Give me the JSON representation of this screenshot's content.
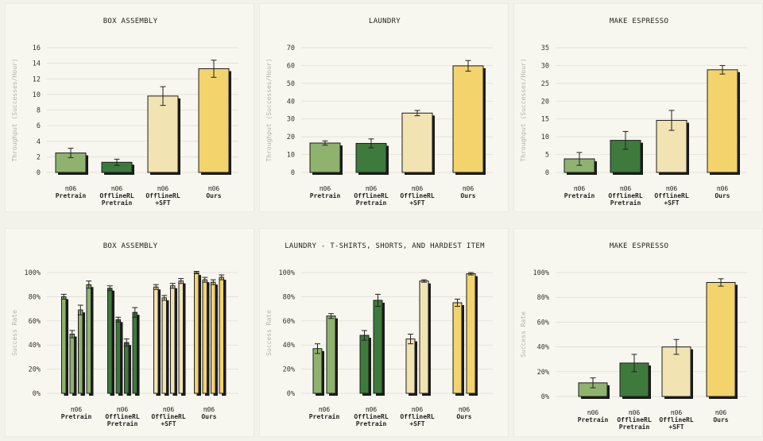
{
  "colors": {
    "pretrain": "#8fb36e",
    "offline_pretrain": "#3d7a3c",
    "offline_sft": "#f1e3b2",
    "ours": "#f3d36c",
    "edge": "#1d1d1d",
    "grid": "#dcdbd2"
  },
  "chart_data": [
    {
      "type": "bar",
      "title": "BOX ASSEMBLY",
      "ylabel": "Throughput (Successes/Hour)",
      "ylim": [
        0,
        16
      ],
      "yticks": [
        "0",
        "2",
        "4",
        "6",
        "8",
        "10",
        "12",
        "14",
        "16"
      ],
      "ytick_values": [
        0,
        2,
        4,
        6,
        8,
        10,
        12,
        14,
        16
      ],
      "categories": [
        {
          "line1": "π06",
          "line2": "Pretrain",
          "line3": ""
        },
        {
          "line1": "π06",
          "line2": "OfflineRL",
          "line3": "Pretrain"
        },
        {
          "line1": "π06",
          "line2": "OfflineRL",
          "line3": "+SFT"
        },
        {
          "line1": "π06",
          "line2": "Ours",
          "line3": ""
        }
      ],
      "values": [
        2.5,
        1.3,
        9.8,
        13.3
      ],
      "errors": [
        0.6,
        0.4,
        1.2,
        1.1
      ]
    },
    {
      "type": "bar",
      "title": "LAUNDRY",
      "ylabel": "Throughput (Successes/Hour)",
      "ylim": [
        0,
        70
      ],
      "yticks": [
        "0",
        "10",
        "20",
        "30",
        "40",
        "50",
        "60",
        "70"
      ],
      "ytick_values": [
        0,
        10,
        20,
        30,
        40,
        50,
        60,
        70
      ],
      "categories": [
        {
          "line1": "π06",
          "line2": "Pretrain",
          "line3": ""
        },
        {
          "line1": "π06",
          "line2": "OfflineRL",
          "line3": "Pretrain"
        },
        {
          "line1": "π06",
          "line2": "OfflineRL",
          "line3": "+SFT"
        },
        {
          "line1": "π06",
          "line2": "Ours",
          "line3": ""
        }
      ],
      "values": [
        16.5,
        16.3,
        33.3,
        59.8
      ],
      "errors": [
        1.2,
        2.5,
        1.5,
        3.0
      ]
    },
    {
      "type": "bar",
      "title": "MAKE ESPRESSO",
      "ylabel": "Throughput (Successes/Hour)",
      "ylim": [
        0,
        35
      ],
      "yticks": [
        "0",
        "5",
        "10",
        "15",
        "20",
        "25",
        "30",
        "35"
      ],
      "ytick_values": [
        0,
        5,
        10,
        15,
        20,
        25,
        30,
        35
      ],
      "categories": [
        {
          "line1": "π06",
          "line2": "Pretrain",
          "line3": ""
        },
        {
          "line1": "π06",
          "line2": "OfflineRL",
          "line3": "Pretrain"
        },
        {
          "line1": "π06",
          "line2": "OfflineRL",
          "line3": "+SFT"
        },
        {
          "line1": "π06",
          "line2": "Ours",
          "line3": ""
        }
      ],
      "values": [
        3.8,
        9.0,
        14.6,
        28.8
      ],
      "errors": [
        1.8,
        2.5,
        2.8,
        1.2
      ]
    },
    {
      "type": "bar",
      "title": "BOX ASSEMBLY",
      "ylabel": "Success Rate",
      "ylim": [
        0,
        100
      ],
      "yticks": [
        "0%",
        "20%",
        "40%",
        "60%",
        "80%",
        "100%"
      ],
      "ytick_values": [
        0,
        20,
        40,
        60,
        80,
        100
      ],
      "categories": [
        {
          "line1": "π06",
          "line2": "Pretrain",
          "line3": ""
        },
        {
          "line1": "π06",
          "line2": "OfflineRL",
          "line3": "Pretrain"
        },
        {
          "line1": "π06",
          "line2": "OfflineRL",
          "line3": "+SFT"
        },
        {
          "line1": "π06",
          "line2": "Ours",
          "line3": ""
        }
      ],
      "group_values": [
        [
          80,
          49,
          69,
          90
        ],
        [
          87,
          61,
          42,
          67
        ],
        [
          88,
          79,
          89,
          93
        ],
        [
          100,
          94,
          92,
          96
        ]
      ],
      "group_errors": [
        [
          2,
          3,
          4,
          3
        ],
        [
          2,
          2,
          3,
          4
        ],
        [
          2,
          2,
          2,
          2
        ],
        [
          1,
          2,
          2,
          2
        ]
      ]
    },
    {
      "type": "bar",
      "title": "LAUNDRY - T-SHIRTS, SHORTS, AND HARDEST ITEM",
      "ylabel": "Success Rate",
      "ylim": [
        0,
        100
      ],
      "yticks": [
        "0%",
        "20%",
        "40%",
        "60%",
        "80%",
        "100%"
      ],
      "ytick_values": [
        0,
        20,
        40,
        60,
        80,
        100
      ],
      "categories": [
        {
          "line1": "π06",
          "line2": "Pretrain",
          "line3": ""
        },
        {
          "line1": "π06",
          "line2": "OfflineRL",
          "line3": "Pretrain"
        },
        {
          "line1": "π06",
          "line2": "OfflineRL",
          "line3": "+SFT"
        },
        {
          "line1": "π06",
          "line2": "Ours",
          "line3": ""
        }
      ],
      "group_values": [
        [
          37,
          64
        ],
        [
          48,
          77
        ],
        [
          45,
          93
        ],
        [
          75,
          99
        ]
      ],
      "group_errors": [
        [
          4,
          2
        ],
        [
          4,
          5
        ],
        [
          4,
          1
        ],
        [
          3,
          1
        ]
      ]
    },
    {
      "type": "bar",
      "title": "MAKE ESPRESSO",
      "ylabel": "Success Rate",
      "ylim": [
        0,
        100
      ],
      "yticks": [
        "0%",
        "20%",
        "40%",
        "60%",
        "80%",
        "100%"
      ],
      "ytick_values": [
        0,
        20,
        40,
        60,
        80,
        100
      ],
      "categories": [
        {
          "line1": "π06",
          "line2": "Pretrain",
          "line3": ""
        },
        {
          "line1": "π06",
          "line2": "OfflineRL",
          "line3": "Pretrain"
        },
        {
          "line1": "π06",
          "line2": "OfflineRL",
          "line3": "+SFT"
        },
        {
          "line1": "π06",
          "line2": "Ours",
          "line3": ""
        }
      ],
      "values": [
        11,
        27,
        40,
        92
      ],
      "errors": [
        4,
        7,
        6,
        3
      ]
    }
  ]
}
